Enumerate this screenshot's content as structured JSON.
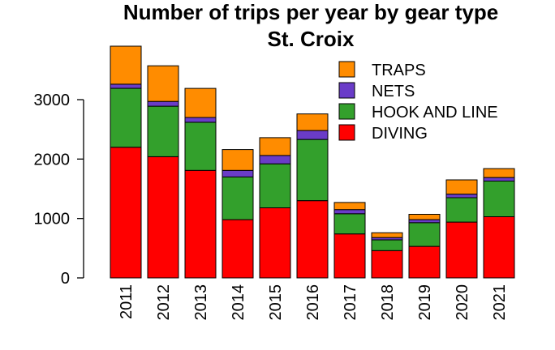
{
  "chart_data": {
    "type": "bar",
    "stacked": true,
    "title": "Number of trips per year by gear type",
    "subtitle": "St. Croix",
    "xlabel": "",
    "ylabel": "",
    "categories": [
      "2011",
      "2012",
      "2013",
      "2014",
      "2015",
      "2016",
      "2017",
      "2018",
      "2019",
      "2020",
      "2021"
    ],
    "ylim": [
      0,
      3900
    ],
    "yticks": [
      0,
      1000,
      2000,
      3000
    ],
    "grid": false,
    "legend_position": "top-right",
    "series": [
      {
        "name": "DIVING",
        "color": "#ff0000",
        "values": [
          2200,
          2040,
          1810,
          980,
          1180,
          1300,
          740,
          460,
          530,
          940,
          1030
        ]
      },
      {
        "name": "HOOK AND LINE",
        "color": "#33a02c",
        "values": [
          990,
          850,
          810,
          720,
          740,
          1030,
          340,
          180,
          400,
          410,
          600
        ]
      },
      {
        "name": "NETS",
        "color": "#6a3cc8",
        "values": [
          70,
          80,
          80,
          110,
          140,
          150,
          70,
          40,
          50,
          60,
          60
        ]
      },
      {
        "name": "TRAPS",
        "color": "#ff8c00",
        "values": [
          640,
          600,
          490,
          350,
          300,
          280,
          120,
          80,
          90,
          240,
          150
        ]
      }
    ]
  }
}
